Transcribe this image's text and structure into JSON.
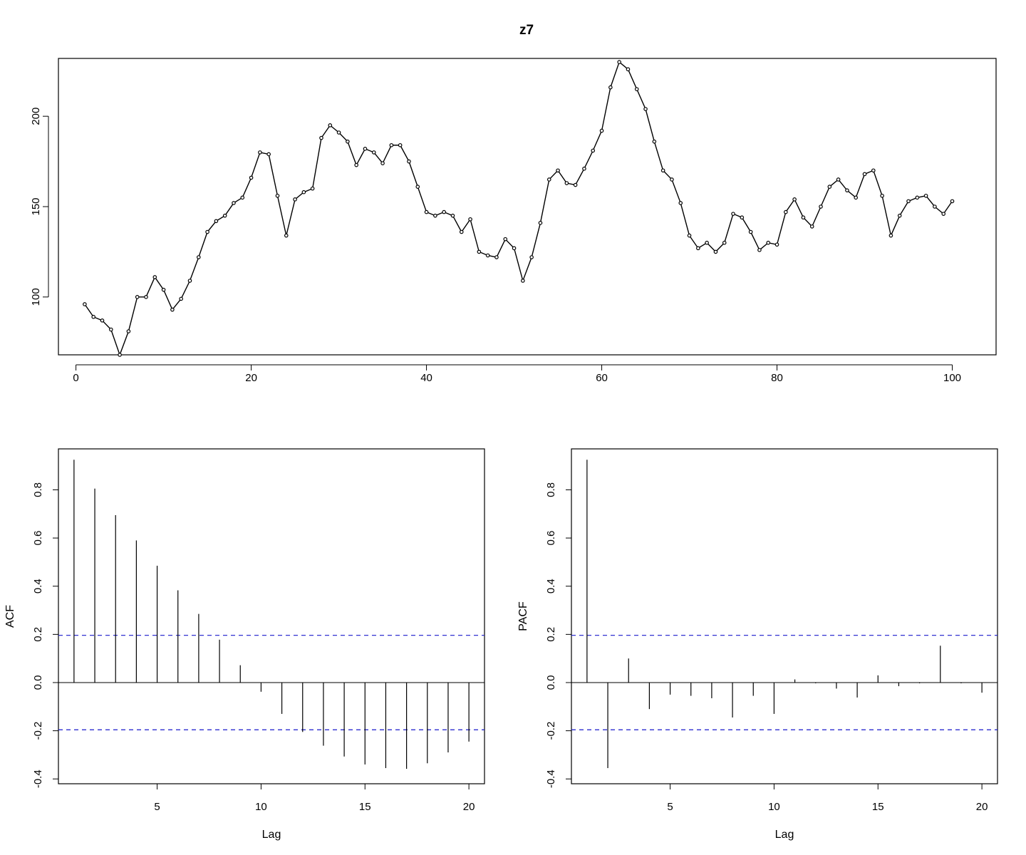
{
  "chart_data": [
    {
      "type": "line",
      "title": "z7",
      "xlabel": "",
      "ylabel": "",
      "xlim": [
        -2,
        105
      ],
      "ylim": [
        68,
        232
      ],
      "x_ticks": [
        0,
        20,
        40,
        60,
        80,
        100
      ],
      "y_ticks": [
        100,
        150,
        200
      ],
      "markers": "open-circle",
      "grid": false,
      "x": [
        1,
        2,
        3,
        4,
        5,
        6,
        7,
        8,
        9,
        10,
        11,
        12,
        13,
        14,
        15,
        16,
        17,
        18,
        19,
        20,
        21,
        22,
        23,
        24,
        25,
        26,
        27,
        28,
        29,
        30,
        31,
        32,
        33,
        34,
        35,
        36,
        37,
        38,
        39,
        40,
        41,
        42,
        43,
        44,
        45,
        46,
        47,
        48,
        49,
        50,
        51,
        52,
        53,
        54,
        55,
        56,
        57,
        58,
        59,
        60,
        61,
        62,
        63,
        64,
        65,
        66,
        67,
        68,
        69,
        70,
        71,
        72,
        73,
        74,
        75,
        76,
        77,
        78,
        79,
        80,
        81,
        82,
        83,
        84,
        85,
        86,
        87,
        88,
        89,
        90,
        91,
        92,
        93,
        94,
        95,
        96,
        97,
        98,
        99,
        100
      ],
      "values": [
        96,
        89,
        87,
        82,
        68,
        81,
        100,
        100,
        111,
        104,
        93,
        99,
        109,
        122,
        136,
        142,
        145,
        152,
        155,
        166,
        180,
        179,
        156,
        134,
        154,
        158,
        160,
        188,
        195,
        191,
        186,
        173,
        182,
        180,
        174,
        184,
        184,
        175,
        161,
        147,
        145,
        147,
        145,
        136,
        143,
        125,
        123,
        122,
        132,
        127,
        109,
        122,
        141,
        165,
        170,
        163,
        162,
        171,
        181,
        192,
        216,
        230,
        226,
        215,
        204,
        186,
        170,
        165,
        152,
        134,
        127,
        130,
        125,
        130,
        146,
        144,
        136,
        126,
        130,
        129,
        147,
        154,
        144,
        139,
        150,
        161,
        165,
        159,
        155,
        168,
        170,
        156,
        134,
        145,
        153,
        155,
        156,
        150,
        146,
        153
      ]
    },
    {
      "type": "bar",
      "title": "",
      "xlabel": "Lag",
      "ylabel": "ACF",
      "xlim": [
        0.25,
        20.75
      ],
      "ylim": [
        -0.42,
        0.97
      ],
      "x_ticks": [
        5,
        10,
        15,
        20
      ],
      "y_ticks": [
        "-0.4",
        "-0.2",
        "0.0",
        "0.2",
        "0.4",
        "0.6",
        "0.8"
      ],
      "categories": [
        1,
        2,
        3,
        4,
        5,
        6,
        7,
        8,
        9,
        10,
        11,
        12,
        13,
        14,
        15,
        16,
        17,
        18,
        19,
        20
      ],
      "values": [
        0.925,
        0.805,
        0.695,
        0.59,
        0.485,
        0.383,
        0.285,
        0.178,
        0.072,
        -0.038,
        -0.13,
        -0.205,
        -0.262,
        -0.307,
        -0.34,
        -0.355,
        -0.358,
        -0.335,
        -0.29,
        -0.245
      ],
      "confidence_band": 0.196,
      "band_color": "#1a1acc",
      "grid": false
    },
    {
      "type": "bar",
      "title": "",
      "xlabel": "Lag",
      "ylabel": "PACF",
      "xlim": [
        0.25,
        20.75
      ],
      "ylim": [
        -0.42,
        0.97
      ],
      "x_ticks": [
        5,
        10,
        15,
        20
      ],
      "y_ticks": [
        "-0.4",
        "-0.2",
        "0.0",
        "0.2",
        "0.4",
        "0.6",
        "0.8"
      ],
      "categories": [
        1,
        2,
        3,
        4,
        5,
        6,
        7,
        8,
        9,
        10,
        11,
        12,
        13,
        14,
        15,
        16,
        17,
        18,
        19,
        20
      ],
      "values": [
        0.925,
        -0.355,
        0.1,
        -0.11,
        -0.05,
        -0.055,
        -0.065,
        -0.145,
        -0.055,
        -0.13,
        0.013,
        -0.003,
        -0.025,
        -0.062,
        0.03,
        -0.015,
        -0.003,
        0.153,
        -0.003,
        -0.042
      ],
      "confidence_band": 0.196,
      "band_color": "#1a1acc",
      "grid": false
    }
  ]
}
